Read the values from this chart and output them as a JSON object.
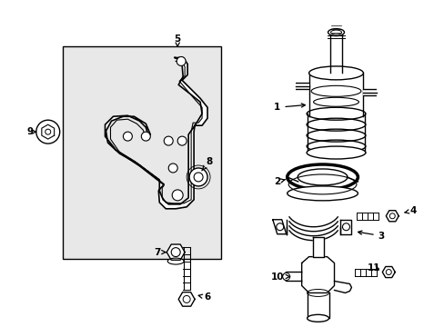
{
  "background_color": "#ffffff",
  "box_fill": "#e8e8e8",
  "line_color": "#000000",
  "figsize": [
    4.89,
    3.6
  ],
  "dpi": 100
}
